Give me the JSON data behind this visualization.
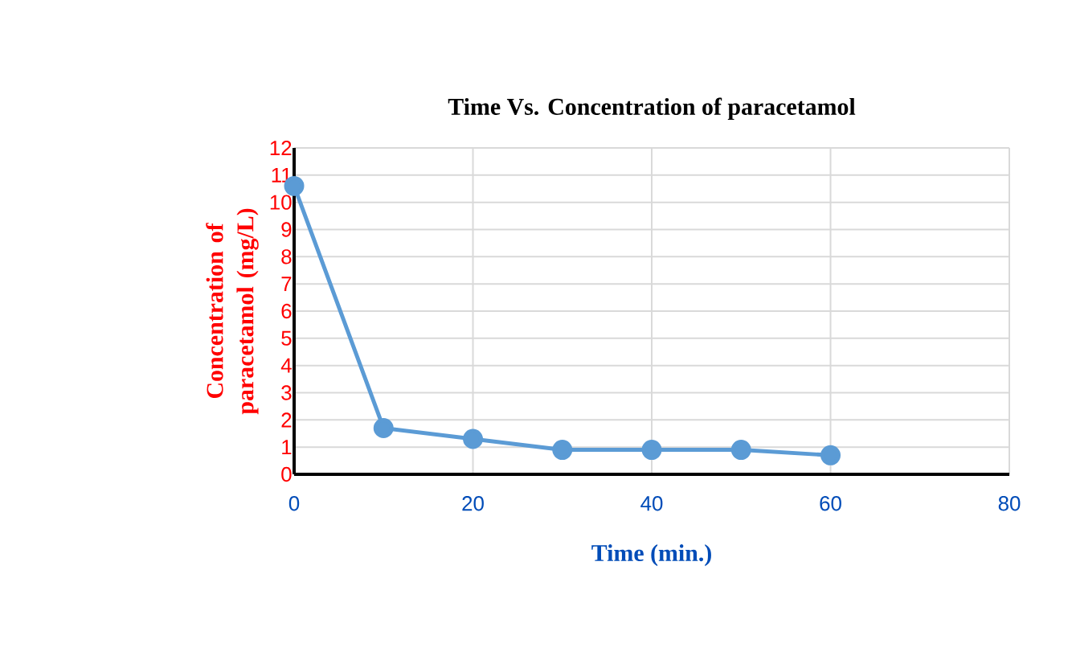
{
  "chart_data": {
    "type": "line",
    "title": "Time Vs. Concentration of paracetamol",
    "xlabel": "Time (min.)",
    "ylabel": "Concentration of paracetamol (mg/L)",
    "series": [
      {
        "color": "#5b9bd5",
        "x": [
          0,
          10,
          20,
          30,
          40,
          50,
          60
        ],
        "values": [
          10.6,
          1.7,
          1.3,
          0.9,
          0.9,
          0.9,
          0.7
        ]
      }
    ],
    "xlim": [
      0,
      80
    ],
    "xticks": [
      0,
      20,
      40,
      60,
      80
    ],
    "ylim": [
      0,
      12
    ],
    "yticks": [
      0,
      1,
      2,
      3,
      4,
      5,
      6,
      7,
      8,
      9,
      10,
      11,
      12
    ],
    "grid": true,
    "marker": "circle",
    "line_style": "solid"
  }
}
